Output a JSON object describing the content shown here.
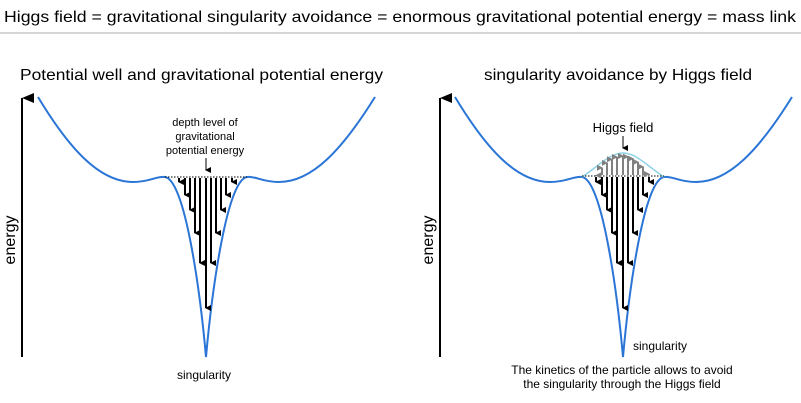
{
  "header": {
    "title": "Higgs field  =  gravitational singularity avoidance  =  enormous gravitational potential energy  =  mass link"
  },
  "left_panel": {
    "title": "Potential well and gravitational potential energy",
    "axis_label": "energy",
    "annotation": [
      "depth level of",
      "gravitational",
      "potential energy"
    ],
    "bottom_label": "singularity"
  },
  "right_panel": {
    "title": "singularity avoidance by Higgs field",
    "axis_label": "energy",
    "annotation": "Higgs field",
    "bottom_label": "singularity",
    "caption": [
      "The kinetics of the particle allows to avoid",
      "the singularity through the Higgs field"
    ]
  },
  "colors": {
    "curve": "#2a75d6",
    "higgs_dome": "#8fd3e6",
    "higgs_arrows": "#808080",
    "gravity_arrows": "#000000",
    "divider": "#c8c8c8"
  }
}
